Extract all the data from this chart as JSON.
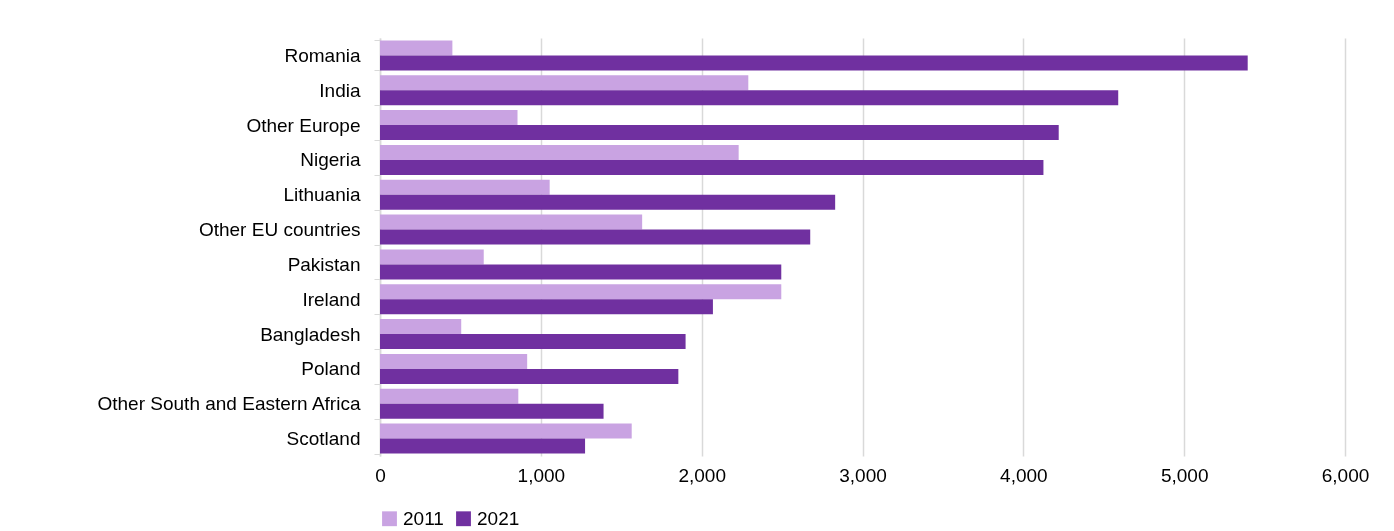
{
  "chart_data": {
    "type": "bar",
    "orientation": "horizontal",
    "categories": [
      "Romania",
      "India",
      "Other Europe",
      "Nigeria",
      "Lithuania",
      "Other EU countries",
      "Pakistan",
      "Ireland",
      "Bangladesh",
      "Poland",
      "Other South and Eastern Africa",
      "Scotland"
    ],
    "series": [
      {
        "name": "2011",
        "color": "#c9a3e2",
        "values": [
          450,
          2290,
          855,
          2230,
          1055,
          1630,
          645,
          2495,
          505,
          915,
          860,
          1565
        ]
      },
      {
        "name": "2021",
        "color": "#7030a0",
        "values": [
          5395,
          4590,
          4220,
          4125,
          2830,
          2675,
          2495,
          2070,
          1900,
          1855,
          1390,
          1275
        ]
      }
    ],
    "xlim": [
      0,
      6000
    ],
    "xticks": [
      0,
      {
        "value": 1000,
        "label": "1,000"
      },
      {
        "value": 2000,
        "label": "2,000"
      },
      {
        "value": 3000,
        "label": "3,000"
      },
      {
        "value": 4000,
        "label": "4,000"
      },
      {
        "value": 5000,
        "label": "5,000"
      },
      {
        "value": 6000,
        "label": "6,000"
      }
    ],
    "grid": "x",
    "legend": "bottom"
  }
}
